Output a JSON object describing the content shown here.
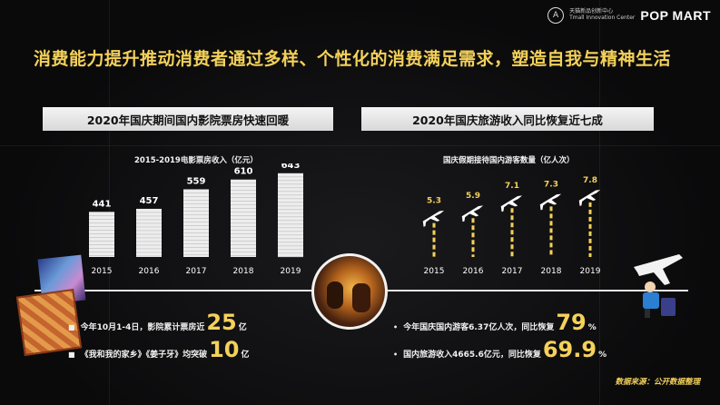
{
  "logo": {
    "icon": "logo-A-icon",
    "cn": "天猫新品创新中心",
    "en": "Tmall Innovation Center",
    "brand": "POP MART"
  },
  "headline": "消费能力提升推动消费者通过多样、个性化的消费满足需求，塑造自我与精神生活",
  "left": {
    "banner": "2020年国庆期间国内影院票房快速回暖",
    "stats": [
      {
        "pre": "今年10月1-4日，影院累计票房近",
        "big": "25",
        "unit": "亿"
      },
      {
        "pre": "《我和我的家乡》《姜子牙》均突破",
        "big": "10",
        "unit": "亿"
      }
    ]
  },
  "right": {
    "banner": "2020年国庆旅游收入同比恢复近七成",
    "stats": [
      {
        "pre": "今年国庆国内游客6.37亿人次，同比恢复",
        "big": "79",
        "unit": "%"
      },
      {
        "pre": "国内旅游收入4665.6亿元，同比恢复",
        "big": "69.9",
        "unit": "%"
      }
    ]
  },
  "source": "数据来源：公开数据整理",
  "colors": {
    "accent": "#f4d15a",
    "bar": "#ededed",
    "background": "#0a0a0b"
  },
  "chart_data": [
    {
      "type": "bar",
      "title": "2015-2019电影票房收入（亿元）",
      "categories": [
        "2015",
        "2016",
        "2017",
        "2018",
        "2019"
      ],
      "values": [
        441,
        457,
        559,
        610,
        643
      ],
      "value_labels": [
        "441",
        "457",
        "559",
        "610",
        "643"
      ],
      "ylim": [
        0,
        700
      ],
      "grid": false
    },
    {
      "type": "bar",
      "title": "国庆假期接待国内游客数量（亿人次）",
      "categories": [
        "2015",
        "2016",
        "2017",
        "2018",
        "2019"
      ],
      "values": [
        5.3,
        5.9,
        7.1,
        7.3,
        7.8
      ],
      "value_labels": [
        "5.3",
        "5.9",
        "7.1",
        "7.3",
        "7.8"
      ],
      "ylim": [
        0,
        8
      ],
      "mark": "airplane-icon",
      "grid": false
    }
  ]
}
